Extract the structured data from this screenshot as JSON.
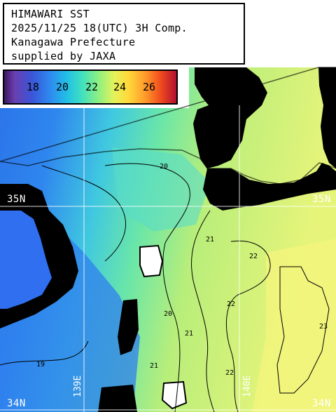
{
  "title": {
    "line1": "HIMAWARI SST",
    "line2": "2025/11/25 18(UTC) 3H Comp.",
    "line3": "Kanagawa Prefecture",
    "line4": "supplied by JAXA"
  },
  "legend": {
    "ticks": [
      "18",
      "20",
      "22",
      "24",
      "26"
    ],
    "colors": {
      "cold": "#3b1760",
      "mid": "#8ff080",
      "warm": "#b01030"
    }
  },
  "graticule": {
    "lat_north": "35N",
    "lat_south": "34N",
    "lon_west": "139E",
    "lon_east": "140E"
  },
  "isotherm_labels": {
    "t19": "19",
    "t20": "20",
    "t21": "21",
    "t22": "22",
    "t23": "23"
  },
  "colors": {
    "land": "#000000",
    "sea_cool": "#2f86ee",
    "sea_mid": "#5fe0b0",
    "sea_warm": "#c8f07a",
    "sea_warmest": "#f0f47a",
    "grid": "#ffffff"
  }
}
